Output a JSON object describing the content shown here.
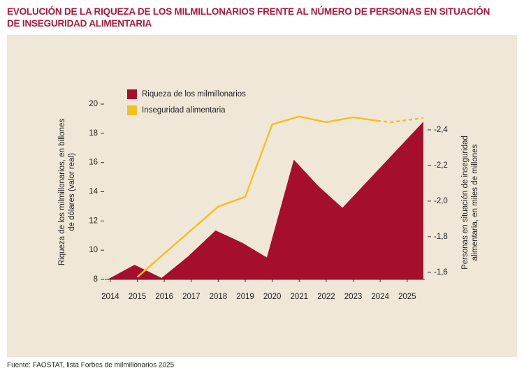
{
  "chart_data": {
    "type": "area_line",
    "title": "EVOLUCIÓN DE LA RIQUEZA DE LOS MILMILLONARIOS FRENTE AL NÚMERO DE PERSONAS EN SITUACIÓN DE INSEGURIDAD ALIMENTARIA",
    "y_label": "Riqueza de los milmillonarios, en billones de dólares (valor real)",
    "y2_label": "Personas en situación de inseguridad alimentaria, en miles de millones",
    "source": "Fuente: FAOSTAT, lista Forbes de milmillonarios 2025",
    "xlim": [
      2013.9,
      2025.6
    ],
    "xticks": [
      2014,
      2015,
      2016,
      2017,
      2018,
      2019,
      2020,
      2021,
      2022,
      2023,
      2024,
      2025
    ],
    "ylim": [
      8,
      20
    ],
    "yticks": [
      8,
      10,
      12,
      14,
      16,
      18,
      20
    ],
    "y2lim": [
      -1.56,
      -2.545
    ],
    "y2ticks": [
      {
        "value": -1.6,
        "label": "-1,6"
      },
      {
        "value": -1.8,
        "label": "-1,8"
      },
      {
        "value": -2.0,
        "label": "-2,0"
      },
      {
        "value": -2.2,
        "label": "-2,2"
      },
      {
        "value": -2.4,
        "label": "-2,4"
      }
    ],
    "series": [
      {
        "name": "Riqueza de los milmillonarios",
        "kind": "area",
        "color": "#a50f2d",
        "x": [
          2013.9,
          2014.9,
          2015.9,
          2016.9,
          2017.9,
          2018.9,
          2019.8,
          2020.8,
          2021.7,
          2022.6,
          2025.6
        ],
        "values": [
          8,
          9.0,
          8.1,
          9.6,
          11.35,
          10.5,
          9.5,
          16.2,
          14.4,
          12.9,
          18.8
        ]
      },
      {
        "name": "Inseguridad alimentaria",
        "kind": "line",
        "axis": "y2",
        "color": "#f5c020",
        "x": [
          2015.0,
          2018.0,
          2019.0,
          2020.0,
          2021.0,
          2022.0,
          2023.0,
          2023.9
        ],
        "values": [
          -1.573,
          -1.969,
          -2.024,
          -2.431,
          -2.475,
          -2.443,
          -2.471,
          -2.451
        ],
        "projection": {
          "x": [
            2023.9,
            2024.4,
            2025.6
          ],
          "values": [
            -2.451,
            -2.443,
            -2.467
          ]
        }
      }
    ]
  }
}
